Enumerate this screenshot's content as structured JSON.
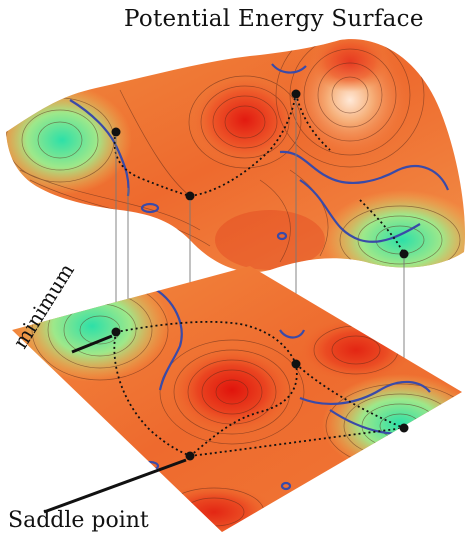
{
  "title": "Potential Energy Surface",
  "labels": {
    "minimum": "minimum",
    "saddle": "Saddle point"
  },
  "colors": {
    "high": "#e8241a",
    "mid": "#f07a3c",
    "low": "#48e0b0",
    "contour": "#3a4aa8",
    "path": "#111111"
  }
}
